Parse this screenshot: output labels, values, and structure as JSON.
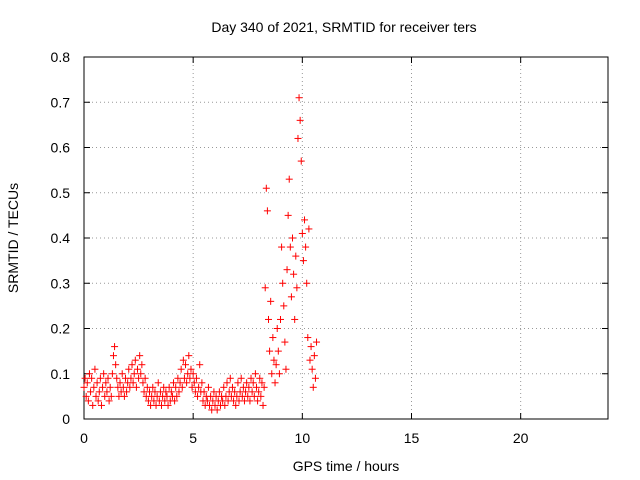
{
  "chart_data": {
    "type": "scatter",
    "title": "Day 340 of 2021, SRMTID for receiver ters",
    "xlabel": "GPS time / hours",
    "ylabel": "SRMTID / TECUs",
    "xlim": [
      0,
      24
    ],
    "ylim": [
      0,
      0.8
    ],
    "xticks": [
      0,
      5,
      10,
      15,
      20
    ],
    "xtick_labels": [
      "0",
      "5",
      "10",
      "15",
      "20"
    ],
    "yticks": [
      0,
      0.1,
      0.2,
      0.3,
      0.4,
      0.5,
      0.6,
      0.7,
      0.8
    ],
    "ytick_labels": [
      "0",
      "0.1",
      "0.2",
      "0.3",
      "0.4",
      "0.5",
      "0.6",
      "0.7",
      "0.8"
    ],
    "grid": true,
    "marker": "+",
    "series": [
      {
        "name": "SRMTID",
        "color": "#ff0000",
        "points": [
          [
            0.0,
            0.07
          ],
          [
            0.05,
            0.09
          ],
          [
            0.1,
            0.05
          ],
          [
            0.15,
            0.08
          ],
          [
            0.2,
            0.04
          ],
          [
            0.25,
            0.1
          ],
          [
            0.3,
            0.06
          ],
          [
            0.35,
            0.09
          ],
          [
            0.4,
            0.03
          ],
          [
            0.45,
            0.07
          ],
          [
            0.5,
            0.11
          ],
          [
            0.55,
            0.05
          ],
          [
            0.6,
            0.08
          ],
          [
            0.65,
            0.04
          ],
          [
            0.7,
            0.06
          ],
          [
            0.75,
            0.09
          ],
          [
            0.8,
            0.03
          ],
          [
            0.85,
            0.07
          ],
          [
            0.9,
            0.1
          ],
          [
            0.95,
            0.05
          ],
          [
            1.0,
            0.08
          ],
          [
            1.05,
            0.06
          ],
          [
            1.1,
            0.09
          ],
          [
            1.15,
            0.04
          ],
          [
            1.2,
            0.07
          ],
          [
            1.25,
            0.05
          ],
          [
            1.3,
            0.1
          ],
          [
            1.35,
            0.14
          ],
          [
            1.4,
            0.16
          ],
          [
            1.45,
            0.12
          ],
          [
            1.5,
            0.09
          ],
          [
            1.55,
            0.07
          ],
          [
            1.6,
            0.05
          ],
          [
            1.65,
            0.08
          ],
          [
            1.7,
            0.06
          ],
          [
            1.75,
            0.1
          ],
          [
            1.8,
            0.07
          ],
          [
            1.85,
            0.05
          ],
          [
            1.9,
            0.09
          ],
          [
            1.95,
            0.06
          ],
          [
            2.0,
            0.08
          ],
          [
            2.05,
            0.11
          ],
          [
            2.1,
            0.07
          ],
          [
            2.15,
            0.09
          ],
          [
            2.2,
            0.12
          ],
          [
            2.25,
            0.08
          ],
          [
            2.3,
            0.1
          ],
          [
            2.35,
            0.13
          ],
          [
            2.4,
            0.07
          ],
          [
            2.45,
            0.11
          ],
          [
            2.5,
            0.09
          ],
          [
            2.55,
            0.14
          ],
          [
            2.6,
            0.1
          ],
          [
            2.65,
            0.12
          ],
          [
            2.7,
            0.08
          ],
          [
            2.75,
            0.06
          ],
          [
            2.8,
            0.09
          ],
          [
            2.85,
            0.05
          ],
          [
            2.9,
            0.07
          ],
          [
            2.95,
            0.04
          ],
          [
            3.0,
            0.06
          ],
          [
            3.05,
            0.03
          ],
          [
            3.1,
            0.05
          ],
          [
            3.15,
            0.07
          ],
          [
            3.2,
            0.04
          ],
          [
            3.25,
            0.06
          ],
          [
            3.3,
            0.03
          ],
          [
            3.35,
            0.05
          ],
          [
            3.4,
            0.08
          ],
          [
            3.45,
            0.04
          ],
          [
            3.5,
            0.06
          ],
          [
            3.55,
            0.03
          ],
          [
            3.6,
            0.05
          ],
          [
            3.65,
            0.07
          ],
          [
            3.7,
            0.04
          ],
          [
            3.75,
            0.06
          ],
          [
            3.8,
            0.05
          ],
          [
            3.85,
            0.03
          ],
          [
            3.9,
            0.07
          ],
          [
            3.95,
            0.04
          ],
          [
            4.0,
            0.06
          ],
          [
            4.05,
            0.05
          ],
          [
            4.1,
            0.08
          ],
          [
            4.15,
            0.04
          ],
          [
            4.2,
            0.07
          ],
          [
            4.25,
            0.05
          ],
          [
            4.3,
            0.09
          ],
          [
            4.35,
            0.06
          ],
          [
            4.4,
            0.08
          ],
          [
            4.45,
            0.11
          ],
          [
            4.5,
            0.07
          ],
          [
            4.55,
            0.13
          ],
          [
            4.6,
            0.09
          ],
          [
            4.65,
            0.12
          ],
          [
            4.7,
            0.08
          ],
          [
            4.75,
            0.1
          ],
          [
            4.8,
            0.14
          ],
          [
            4.85,
            0.09
          ],
          [
            4.9,
            0.11
          ],
          [
            4.95,
            0.07
          ],
          [
            5.0,
            0.1
          ],
          [
            5.05,
            0.08
          ],
          [
            5.1,
            0.06
          ],
          [
            5.15,
            0.09
          ],
          [
            5.2,
            0.05
          ],
          [
            5.25,
            0.07
          ],
          [
            5.3,
            0.12
          ],
          [
            5.35,
            0.06
          ],
          [
            5.4,
            0.08
          ],
          [
            5.45,
            0.04
          ],
          [
            5.5,
            0.06
          ],
          [
            5.55,
            0.03
          ],
          [
            5.6,
            0.05
          ],
          [
            5.65,
            0.04
          ],
          [
            5.7,
            0.07
          ],
          [
            5.75,
            0.03
          ],
          [
            5.8,
            0.05
          ],
          [
            5.85,
            0.02
          ],
          [
            5.9,
            0.04
          ],
          [
            5.95,
            0.06
          ],
          [
            6.0,
            0.03
          ],
          [
            6.05,
            0.05
          ],
          [
            6.1,
            0.02
          ],
          [
            6.15,
            0.04
          ],
          [
            6.2,
            0.06
          ],
          [
            6.25,
            0.03
          ],
          [
            6.3,
            0.05
          ],
          [
            6.35,
            0.04
          ],
          [
            6.4,
            0.07
          ],
          [
            6.45,
            0.03
          ],
          [
            6.5,
            0.05
          ],
          [
            6.55,
            0.08
          ],
          [
            6.6,
            0.04
          ],
          [
            6.65,
            0.06
          ],
          [
            6.7,
            0.09
          ],
          [
            6.75,
            0.05
          ],
          [
            6.8,
            0.07
          ],
          [
            6.85,
            0.04
          ],
          [
            6.9,
            0.06
          ],
          [
            6.95,
            0.03
          ],
          [
            7.0,
            0.05
          ],
          [
            7.05,
            0.08
          ],
          [
            7.1,
            0.04
          ],
          [
            7.15,
            0.06
          ],
          [
            7.2,
            0.09
          ],
          [
            7.25,
            0.05
          ],
          [
            7.3,
            0.07
          ],
          [
            7.35,
            0.04
          ],
          [
            7.4,
            0.06
          ],
          [
            7.45,
            0.08
          ],
          [
            7.5,
            0.05
          ],
          [
            7.55,
            0.07
          ],
          [
            7.6,
            0.04
          ],
          [
            7.65,
            0.09
          ],
          [
            7.7,
            0.06
          ],
          [
            7.75,
            0.08
          ],
          [
            7.8,
            0.05
          ],
          [
            7.85,
            0.1
          ],
          [
            7.9,
            0.07
          ],
          [
            7.95,
            0.04
          ],
          [
            8.0,
            0.06
          ],
          [
            8.05,
            0.09
          ],
          [
            8.1,
            0.05
          ],
          [
            8.15,
            0.08
          ],
          [
            8.2,
            0.03
          ],
          [
            8.25,
            0.07
          ],
          [
            8.3,
            0.29
          ],
          [
            8.35,
            0.51
          ],
          [
            8.4,
            0.46
          ],
          [
            8.45,
            0.22
          ],
          [
            8.5,
            0.15
          ],
          [
            8.55,
            0.26
          ],
          [
            8.6,
            0.1
          ],
          [
            8.65,
            0.18
          ],
          [
            8.7,
            0.13
          ],
          [
            8.75,
            0.08
          ],
          [
            8.8,
            0.12
          ],
          [
            8.85,
            0.2
          ],
          [
            8.9,
            0.15
          ],
          [
            8.95,
            0.1
          ],
          [
            9.0,
            0.22
          ],
          [
            9.05,
            0.38
          ],
          [
            9.1,
            0.3
          ],
          [
            9.15,
            0.25
          ],
          [
            9.2,
            0.17
          ],
          [
            9.25,
            0.11
          ],
          [
            9.3,
            0.33
          ],
          [
            9.35,
            0.45
          ],
          [
            9.4,
            0.53
          ],
          [
            9.45,
            0.38
          ],
          [
            9.5,
            0.27
          ],
          [
            9.55,
            0.4
          ],
          [
            9.6,
            0.32
          ],
          [
            9.65,
            0.22
          ],
          [
            9.7,
            0.36
          ],
          [
            9.75,
            0.29
          ],
          [
            9.8,
            0.62
          ],
          [
            9.85,
            0.71
          ],
          [
            9.9,
            0.66
          ],
          [
            9.95,
            0.57
          ],
          [
            10.0,
            0.41
          ],
          [
            10.05,
            0.35
          ],
          [
            10.1,
            0.44
          ],
          [
            10.15,
            0.38
          ],
          [
            10.2,
            0.3
          ],
          [
            10.25,
            0.18
          ],
          [
            10.3,
            0.42
          ],
          [
            10.35,
            0.13
          ],
          [
            10.4,
            0.16
          ],
          [
            10.45,
            0.11
          ],
          [
            10.5,
            0.07
          ],
          [
            10.55,
            0.14
          ],
          [
            10.6,
            0.09
          ],
          [
            10.65,
            0.17
          ]
        ]
      }
    ]
  }
}
